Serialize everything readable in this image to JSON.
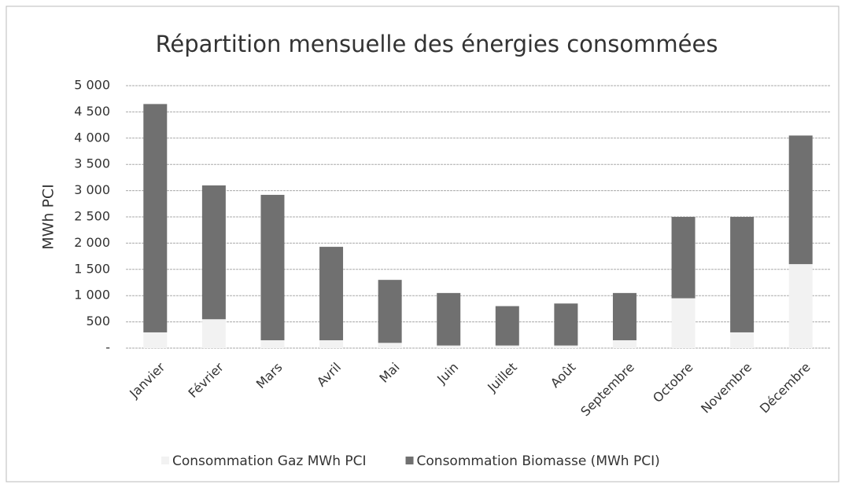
{
  "chart_data": {
    "type": "stacked_bar",
    "title": "Répartition mensuelle des énergies consommées",
    "y_label": "MWh PCI",
    "categories": [
      "Janvier",
      "Février",
      "Mars",
      "Avril",
      "Mai",
      "Juin",
      "Juillet",
      "Août",
      "Septembre",
      "Octobre",
      "Novembre",
      "Décembre"
    ],
    "series": [
      {
        "name": "Consommation Gaz MWh PCI",
        "color": "#f2f2f2",
        "values": [
          300,
          550,
          150,
          150,
          100,
          50,
          50,
          50,
          150,
          950,
          300,
          1600
        ]
      },
      {
        "name": "Consommation Biomasse (MWh PCI)",
        "color": "#707070",
        "values": [
          4350,
          2550,
          2770,
          1780,
          1200,
          1000,
          750,
          800,
          900,
          1550,
          2200,
          2450
        ]
      }
    ],
    "ylim": [
      0,
      5000
    ],
    "yticks": [
      {
        "value": 0,
        "label": "-"
      },
      {
        "value": 500,
        "label": "500"
      },
      {
        "value": 1000,
        "label": "1 000"
      },
      {
        "value": 1500,
        "label": "1 500"
      },
      {
        "value": 2000,
        "label": "2 000"
      },
      {
        "value": 2500,
        "label": "2 500"
      },
      {
        "value": 3000,
        "label": "3 000"
      },
      {
        "value": 3500,
        "label": "3 500"
      },
      {
        "value": 4000,
        "label": "4 000"
      },
      {
        "value": 4500,
        "label": "4 500"
      },
      {
        "value": 5000,
        "label": "5 000"
      }
    ],
    "grid": true,
    "legend": "bottom"
  }
}
